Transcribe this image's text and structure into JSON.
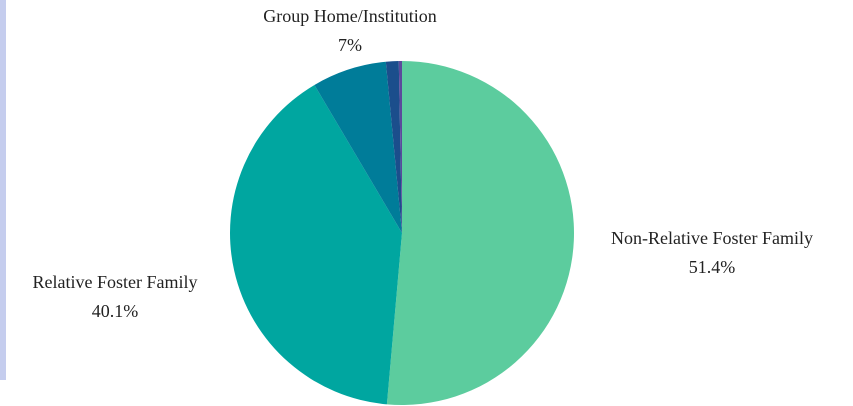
{
  "chart_data": {
    "type": "pie",
    "categories": [
      "Non-Relative Foster Family",
      "Relative Foster Family",
      "Group Home/Institution",
      null,
      null
    ],
    "values": [
      51.4,
      40.1,
      7,
      1.2,
      0.3
    ],
    "value_labels": [
      "51.4%",
      "40.1%",
      "7%",
      null,
      null
    ],
    "colors": [
      "#5ccc9e",
      "#00a6a0",
      "#007c99",
      "#1b4e8c",
      "#5b4a9c"
    ]
  }
}
